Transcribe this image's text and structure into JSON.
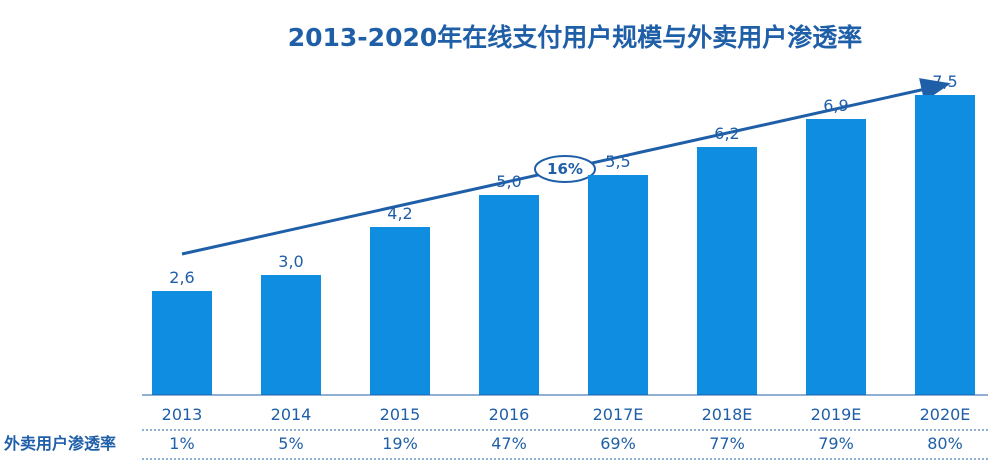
{
  "chart_data": {
    "type": "bar",
    "title": "2013-2020年在线支付用户规模与外卖用户渗透率",
    "categories": [
      "2013",
      "2014",
      "2015",
      "2016",
      "2017E",
      "2018E",
      "2019E",
      "2020E"
    ],
    "series": [
      {
        "values": [
          2.6,
          3.0,
          4.2,
          5.0,
          5.5,
          6.2,
          6.9,
          7.5
        ]
      }
    ],
    "value_labels": [
      "2,6",
      "3,0",
      "4,2",
      "5,0",
      "5,5",
      "6,2",
      "6,9",
      "7,5"
    ],
    "ylim": [
      0,
      8.0
    ],
    "grid": false,
    "growth_annotation": "16%",
    "table_row": {
      "label": "外卖用户渗透率",
      "values": [
        "1%",
        "5%",
        "19%",
        "47%",
        "69%",
        "77%",
        "79%",
        "80%"
      ]
    }
  },
  "colors": {
    "bar": "#0e8de1",
    "text": "#1f5fa8",
    "arrow": "#1f5fa8",
    "rule": "#1f5fa8"
  }
}
